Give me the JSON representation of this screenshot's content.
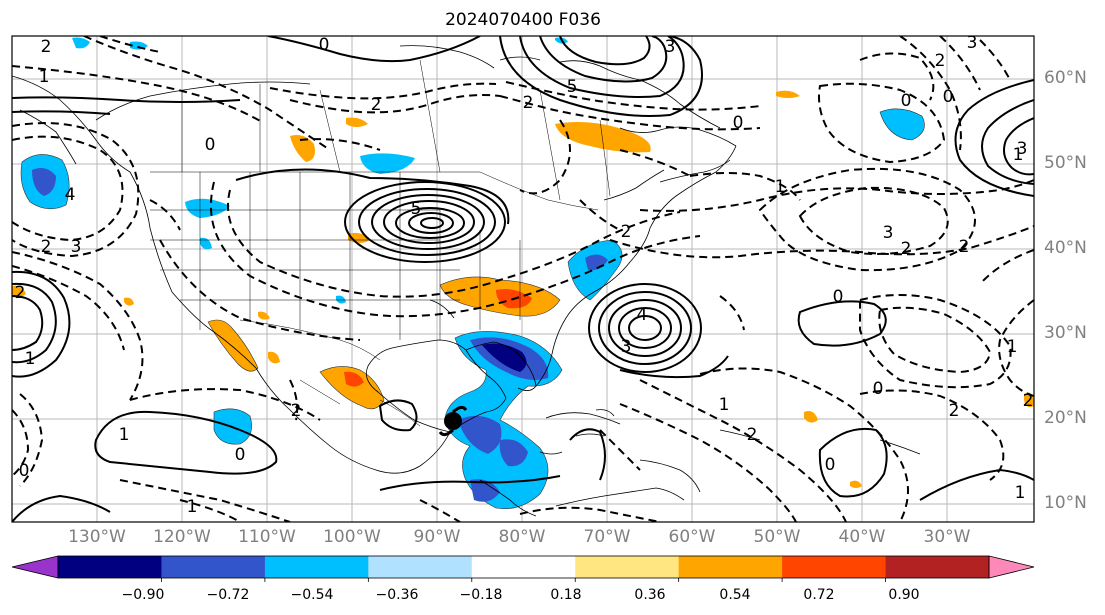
{
  "title": "2024070400 F036",
  "lat_labels": [
    "60°N",
    "50°N",
    "40°N",
    "30°N",
    "20°N",
    "10°N"
  ],
  "lon_labels": [
    "130°W",
    "120°W",
    "110°W",
    "100°W",
    "90°W",
    "80°W",
    "70°W",
    "60°W",
    "50°W",
    "40°W",
    "30°W"
  ],
  "colorbar": {
    "ticks": [
      "−0.90",
      "−0.72",
      "−0.54",
      "−0.36",
      "−0.18",
      "0.18",
      "0.36",
      "0.54",
      "0.72",
      "0.90"
    ],
    "colors": [
      "#9933cc",
      "#000080",
      "#3355cc",
      "#00bfff",
      "#b0e2ff",
      "#ffffff",
      "#ffe680",
      "#ffa500",
      "#ff4500",
      "#b22222",
      "#ff88bb"
    ]
  },
  "contour_labels": {
    "p1": "2",
    "p2": "0",
    "p3": "1",
    "p4": "4",
    "p5": "3",
    "p6": "2",
    "p7": "5",
    "p8": "0",
    "p9": "5",
    "p10": "2",
    "p11": "3",
    "p12": "4",
    "p13": "3",
    "p14": "2",
    "p15": "1",
    "p16": "0",
    "p17": "1",
    "p18": "2",
    "p19": "0",
    "p20": "1",
    "p21": "2",
    "p22": "1",
    "p23": "2",
    "p24": "0",
    "p25": "3",
    "p26": "2",
    "p27": "0",
    "p28": "1",
    "p29": "0",
    "p30": "2",
    "p31": "1",
    "p32": "2",
    "p33": "0",
    "p34": "1",
    "p35": "0",
    "p36": "2",
    "p37": "3",
    "p38": "0",
    "p39": "2",
    "p40": "1",
    "p41": "2",
    "p42": "3"
  }
}
